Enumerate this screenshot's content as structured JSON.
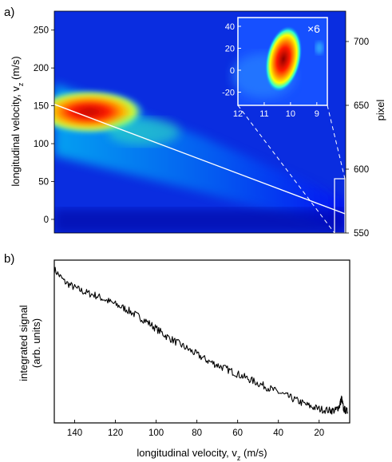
{
  "chart_data": [
    {
      "type": "heatmap",
      "panel_label": "a)",
      "ylabel_main": "longitudinal velocity, v",
      "ylabel_sub": "z",
      "ylabel_unit": " (m/s)",
      "ylim": [
        -18,
        275
      ],
      "yticks": [
        0,
        50,
        100,
        150,
        200,
        250
      ],
      "right_axis_label": "pixel",
      "right_ylim": [
        550,
        700
      ],
      "right_yticks": [
        550,
        600,
        650,
        700
      ],
      "colormap": [
        "#00008f",
        "#0000ff",
        "#00ffff",
        "#ffff00",
        "#ff0000",
        "#800000"
      ],
      "fit_line": {
        "color": "#ffffff",
        "from_y": 152,
        "to_y": 7
      },
      "inset": {
        "magnification": "×6",
        "xticks": [
          12,
          11,
          10,
          9
        ],
        "xlim": [
          12,
          8.6
        ],
        "yticks": [
          -20,
          0,
          20,
          40
        ],
        "ylim": [
          -32,
          48
        ]
      }
    },
    {
      "type": "line",
      "panel_label": "b)",
      "ylabel_line1": "integrated signal",
      "ylabel_line2": "(arb. units)",
      "xlabel_main": "longitudinal velocity, v",
      "xlabel_sub": "z",
      "xlabel_unit": " (m/s)",
      "xlim": [
        150,
        5
      ],
      "xticks": [
        140,
        120,
        100,
        80,
        60,
        40,
        20
      ],
      "ylim": [
        0,
        1
      ],
      "series": [
        {
          "color": "#000000",
          "x": [
            150,
            145,
            140,
            135,
            130,
            125,
            120,
            115,
            110,
            105,
            100,
            95,
            90,
            85,
            80,
            75,
            70,
            65,
            60,
            55,
            50,
            45,
            40,
            35,
            30,
            25,
            20,
            15,
            12,
            10,
            9,
            8,
            6
          ],
          "y": [
            0.97,
            0.89,
            0.85,
            0.82,
            0.8,
            0.77,
            0.74,
            0.71,
            0.67,
            0.63,
            0.58,
            0.53,
            0.49,
            0.45,
            0.41,
            0.37,
            0.34,
            0.31,
            0.28,
            0.25,
            0.22,
            0.19,
            0.16,
            0.13,
            0.1,
            0.07,
            0.05,
            0.04,
            0.04,
            0.07,
            0.12,
            0.05,
            0.03
          ]
        }
      ]
    }
  ]
}
